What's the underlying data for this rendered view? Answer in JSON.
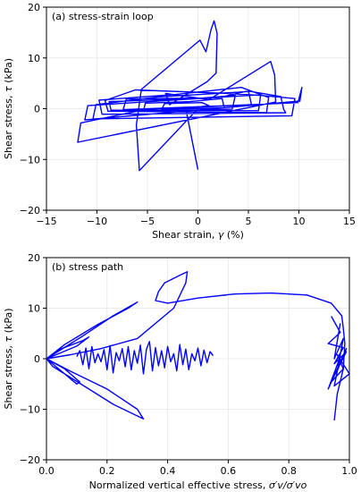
{
  "chart_data": [
    {
      "type": "line",
      "title": "(a) stress-strain loop",
      "xlabel_main": "Shear strain, ",
      "xlabel_var": "γ",
      "xlabel_unit": " (%)",
      "ylabel_main": "Shear stress, ",
      "ylabel_var": "τ",
      "ylabel_unit": " (kPa)",
      "xlim": [
        -15,
        15
      ],
      "ylim": [
        -20,
        20
      ],
      "xticks": [
        -15,
        -10,
        -5,
        0,
        5,
        10,
        15
      ],
      "yticks": [
        -20,
        -10,
        0,
        10,
        20
      ],
      "grid": true,
      "color": "#0000ff",
      "series": [
        {
          "x": [
            0,
            -5.8,
            -6.1,
            -5.6,
            0.2,
            0.8,
            1.3,
            1.6,
            1.9,
            1.8,
            0.9,
            -2.8,
            -3.2,
            1.1,
            7.2,
            7.6,
            7.7,
            -11.9,
            -11.6,
            -5.3,
            9.9,
            10.3,
            10.1,
            -11.2,
            -10.9,
            -3.2,
            5.8,
            9.6,
            9.3,
            -10.4,
            -10.1,
            -4.0,
            5.2,
            8.2,
            8.5,
            8.7,
            -9.5,
            -9.8,
            -2.2,
            4.3,
            7.0,
            6.8,
            -8.9,
            -9.2,
            -6.2,
            3.0,
            6.2,
            6.0,
            -8.6,
            -8.8,
            2.1,
            5.0,
            5.3,
            -7.4,
            -7.1,
            0.5,
            3.7,
            3.4,
            -5.4,
            -5.2,
            -0.8,
            2.4,
            2.6,
            -3.6,
            -3.3,
            0.4,
            1.1,
            -1.2,
            0.0
          ],
          "y": [
            0,
            -12.2,
            -3.2,
            3.8,
            13.5,
            11.2,
            15.6,
            17.3,
            14.8,
            7.0,
            5.3,
            0.8,
            3.0,
            1.8,
            9.3,
            6.6,
            1.3,
            -6.6,
            -2.8,
            -0.2,
            1.2,
            4.2,
            1.5,
            -2.2,
            0.6,
            1.6,
            2.7,
            2.0,
            -1.4,
            -2.0,
            0.8,
            2.3,
            3.4,
            2.4,
            -0.2,
            -0.8,
            -1.1,
            1.7,
            2.8,
            4.2,
            2.2,
            -0.8,
            -0.5,
            1.6,
            3.7,
            3.0,
            2.6,
            -0.4,
            -0.3,
            1.4,
            2.2,
            3.5,
            0.8,
            -0.2,
            1.9,
            2.1,
            2.6,
            -0.1,
            -0.5,
            1.1,
            1.4,
            2.0,
            0.2,
            -0.2,
            1.0,
            1.2,
            0.6,
            0.0,
            -12.0
          ]
        }
      ]
    },
    {
      "type": "line",
      "title": "(b) stress path",
      "xlabel_main": "Normalized vertical effective stress, ",
      "xlabel_var": "σ′v/σ′vo",
      "ylabel_main": "Shear stress, ",
      "ylabel_var": "τ",
      "ylabel_unit": " (kPa)",
      "xlim": [
        0,
        1
      ],
      "ylim": [
        -20,
        20
      ],
      "xticks": [
        0.0,
        0.2,
        0.4,
        0.6,
        0.8,
        1.0
      ],
      "yticks": [
        -20,
        -10,
        0,
        10,
        20
      ],
      "grid": true,
      "color": "#0000ff",
      "series": [
        {
          "x": [
            0.95,
            0.96,
            0.98,
            0.985,
            0.98,
            0.975,
            0.94,
            0.86,
            0.74,
            0.62,
            0.5,
            0.4,
            0.36,
            0.37,
            0.39,
            0.44,
            0.465,
            0.46,
            0.42,
            0.3,
            0.18,
            0.08,
            0.0,
            0.06,
            0.17,
            0.27,
            0.3,
            0.22,
            0.12,
            0.04,
            0.0,
            0.08,
            0.2,
            0.3,
            0.32,
            0.22,
            0.1,
            0.02,
            0.0,
            0.05,
            0.12,
            0.14,
            0.1,
            0.04,
            0.0,
            0.06,
            0.11,
            0.1,
            0.05,
            0.0
          ],
          "y": [
            -12.2,
            -7.0,
            -2.0,
            3.0,
            6.0,
            8.5,
            11.0,
            12.6,
            13.0,
            12.8,
            12.0,
            11.0,
            11.5,
            13.3,
            15.0,
            16.5,
            17.2,
            15.0,
            10.0,
            4.0,
            2.0,
            0.8,
            0.0,
            2.8,
            6.8,
            10.0,
            11.2,
            8.5,
            4.5,
            1.5,
            0.0,
            -2.5,
            -6.0,
            -10.0,
            -11.9,
            -9.0,
            -4.5,
            -1.5,
            0.0,
            2.0,
            3.6,
            4.3,
            2.5,
            1.0,
            0.0,
            -2.0,
            -4.6,
            -5.0,
            -2.5,
            0.0
          ]
        },
        {
          "x": [
            0.1,
            0.11,
            0.12,
            0.13,
            0.14,
            0.15,
            0.16,
            0.17,
            0.18,
            0.19,
            0.2,
            0.21,
            0.22,
            0.23,
            0.24,
            0.25,
            0.26,
            0.27,
            0.28,
            0.29,
            0.3,
            0.31,
            0.32,
            0.33,
            0.34,
            0.35,
            0.36,
            0.37,
            0.38,
            0.39,
            0.4,
            0.41,
            0.42,
            0.43,
            0.44,
            0.45,
            0.46,
            0.47,
            0.48,
            0.49,
            0.5,
            0.51,
            0.52,
            0.53,
            0.54,
            0.55
          ],
          "y": [
            0.4,
            1.6,
            -1.2,
            2.1,
            -2.0,
            2.4,
            -0.8,
            1.0,
            -0.6,
            1.8,
            -2.2,
            2.6,
            -2.8,
            1.2,
            -0.4,
            2.0,
            -1.6,
            2.4,
            -2.2,
            1.6,
            -0.9,
            2.7,
            -3.0,
            1.9,
            3.4,
            -2.4,
            2.2,
            -1.4,
            1.6,
            -1.8,
            2.4,
            -0.6,
            1.0,
            -2.4,
            2.8,
            -1.2,
            1.9,
            -2.2,
            1.0,
            -0.4,
            2.1,
            -1.4,
            1.7,
            -0.8,
            1.4,
            0.6
          ]
        },
        {
          "x": [
            0.94,
            0.97,
            0.93,
            0.98,
            0.95,
            0.99,
            0.94,
            0.98,
            0.96,
            1.0,
            0.95,
            0.97,
            0.93,
            0.99,
            0.96,
            0.98,
            0.95,
            0.97
          ],
          "y": [
            8.4,
            5.2,
            3.0,
            2.2,
            -1.0,
            1.4,
            -4.6,
            -2.0,
            0.8,
            -3.0,
            -5.4,
            0.4,
            -6.0,
            2.0,
            -2.4,
            4.0,
            0.0,
            7.0
          ]
        }
      ]
    }
  ]
}
